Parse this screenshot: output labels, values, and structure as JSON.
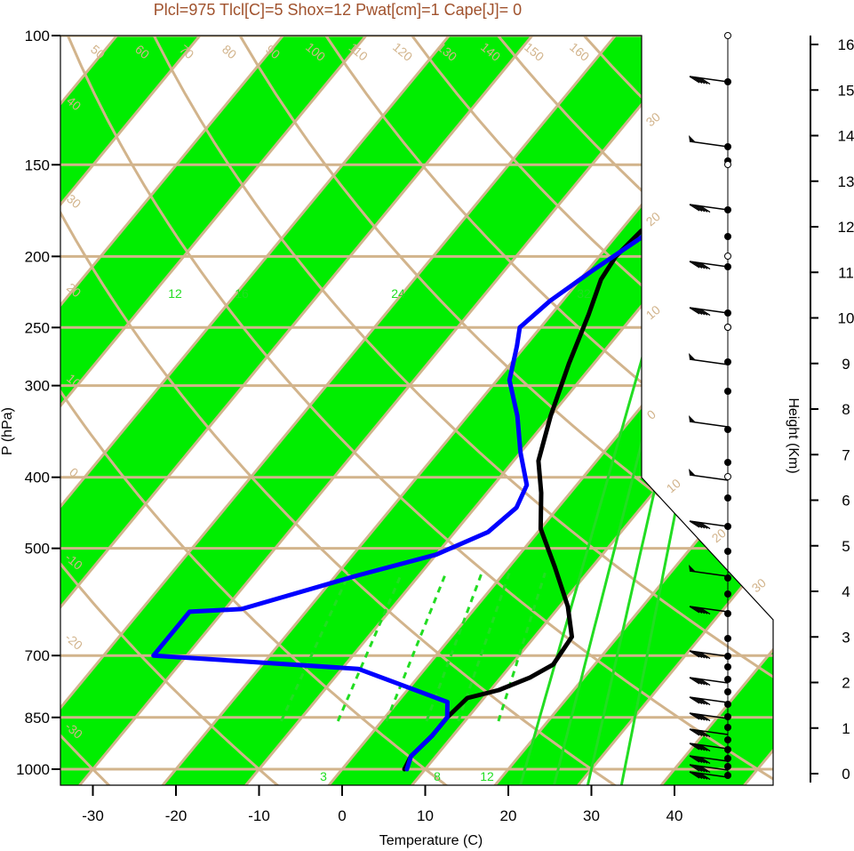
{
  "chart_data": {
    "type": "line",
    "subtype": "skew-t log-p diagram",
    "title": "Plcl=975 Tlcl[C]=5 Shox=12 Pwat[cm]=1 Cape[J]= 0",
    "xlabel": "Temperature (C)",
    "ylabel": "P (hPa)",
    "y2label": "Height (Km)",
    "xlim": [
      -34,
      52
    ],
    "ylim": [
      1050,
      100
    ],
    "y_scale": "log",
    "x_ticks": [
      "-30",
      "-20",
      "-10",
      "0",
      "10",
      "20",
      "30",
      "40"
    ],
    "x_tick_values": [
      -30,
      -20,
      -10,
      0,
      10,
      20,
      30,
      40
    ],
    "p_ticks": [
      "100",
      "150",
      "200",
      "250",
      "300",
      "400",
      "500",
      "700",
      "850",
      "1000"
    ],
    "p_tick_values": [
      100,
      150,
      200,
      250,
      300,
      400,
      500,
      700,
      850,
      1000
    ],
    "height_ticks": [
      "0",
      "1",
      "2",
      "3",
      "4",
      "5",
      "6",
      "7",
      "8",
      "9",
      "10",
      "11",
      "12",
      "13",
      "14",
      "15",
      "16"
    ],
    "isotherm_labels": [
      "50",
      "60",
      "70",
      "80",
      "90",
      "100",
      "110",
      "120",
      "130",
      "140",
      "150",
      "160",
      "40",
      "30",
      "20",
      "10",
      "0",
      "-10",
      "-20",
      "-30",
      "30",
      "20",
      "10",
      "0",
      "10",
      "20",
      "30"
    ],
    "mixing_ratio_labels": [
      "12",
      "16",
      "24",
      "32"
    ],
    "mixing_ratio_lower_labels": [
      "3",
      "8",
      "12"
    ],
    "series": [
      {
        "role": "temperature",
        "color": "#000000",
        "points": [
          [
            7.5,
            1000
          ],
          [
            7,
            960
          ],
          [
            7.5,
            900
          ],
          [
            7.5,
            850
          ],
          [
            8,
            800
          ],
          [
            11,
            780
          ],
          [
            13.5,
            750
          ],
          [
            15,
            720
          ],
          [
            14.5,
            660
          ],
          [
            11,
            600
          ],
          [
            5.5,
            530
          ],
          [
            0,
            470
          ],
          [
            -3.5,
            420
          ],
          [
            -7,
            380
          ],
          [
            -10,
            330
          ],
          [
            -13,
            280
          ],
          [
            -15.5,
            240
          ],
          [
            -17.5,
            215
          ],
          [
            -18,
            200
          ],
          [
            -17.5,
            185
          ],
          [
            -16,
            170
          ],
          [
            -13.5,
            155
          ],
          [
            -11,
            145
          ],
          [
            -7,
            133
          ],
          [
            -2.5,
            122
          ],
          [
            2,
            115
          ],
          [
            6,
            109
          ],
          [
            10.5,
            104
          ]
        ]
      },
      {
        "role": "dewpoint",
        "color": "#0000ff",
        "points": [
          [
            7.8,
            1000
          ],
          [
            7,
            960
          ],
          [
            7.5,
            900
          ],
          [
            7.5,
            850
          ],
          [
            6,
            810
          ],
          [
            -8,
            730
          ],
          [
            -34,
            700
          ],
          [
            -34,
            610
          ],
          [
            -28,
            605
          ],
          [
            -17.5,
            545
          ],
          [
            -10,
            510
          ],
          [
            -6,
            475
          ],
          [
            -5,
            440
          ],
          [
            -6,
            410
          ],
          [
            -10,
            370
          ],
          [
            -14,
            330
          ],
          [
            -18.5,
            295
          ],
          [
            -21,
            265
          ],
          [
            -22.5,
            250
          ],
          [
            -21.5,
            230
          ],
          [
            -19.5,
            210
          ],
          [
            -17,
            190
          ],
          [
            -14,
            165
          ],
          [
            -13.5,
            150
          ],
          [
            -13.5,
            128
          ],
          [
            -10,
            117
          ],
          [
            -8,
            106
          ]
        ]
      }
    ],
    "wind_barbs_km": [
      0,
      0.3,
      0.6,
      0.9,
      1.2,
      1.5,
      2.0,
      2.4,
      2.8,
      3.2,
      3.6,
      4.0,
      4.6,
      5.2,
      5.8,
      6.2,
      7.0,
      8.5,
      9.8,
      11.0,
      12.3,
      13.6,
      14.9,
      15.1
    ]
  }
}
